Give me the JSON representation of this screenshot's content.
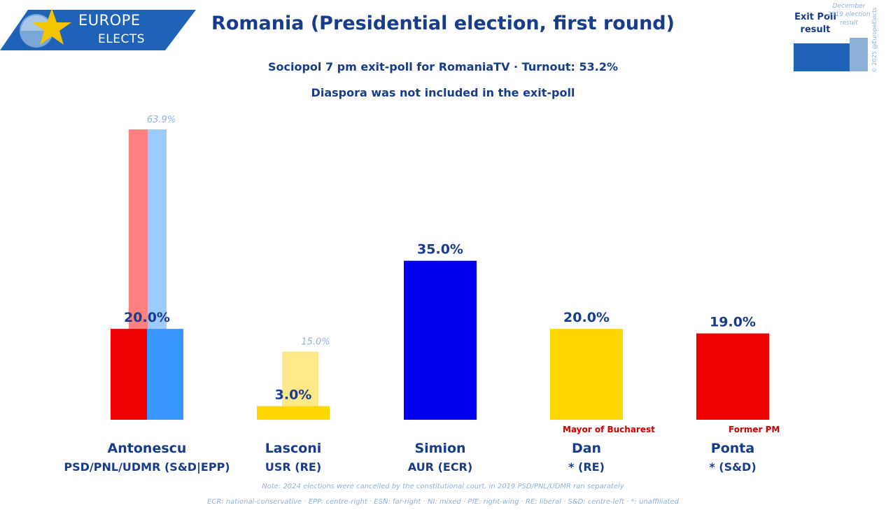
{
  "logo": {
    "line1": "EUROPE",
    "line2": "ELECTS"
  },
  "header": {
    "title": "Romania (Presidential election, first round)",
    "subtitle1": "Sociopol 7 pm exit-poll for RomaniaTV · Turnout: 53.2%",
    "subtitle2": "Diaspora was not included in the exit-poll"
  },
  "legend": {
    "current": "Exit Poll result",
    "previous": "December 2019 election result",
    "copyright": "© 2025 @EuropeElects"
  },
  "colors": {
    "brand": "#163c8a",
    "logo_blue": "#1e63b8",
    "previous_label": "#8db0d8",
    "note_red": "#cc0000"
  },
  "chart_data": {
    "type": "bar",
    "ylim": [
      0,
      70
    ],
    "categories": [
      "Antonescu",
      "Lasconi",
      "Simion",
      "Dan",
      "Ponta"
    ],
    "candidates": [
      {
        "name": "Antonescu",
        "party": "PSD/PNL/UDMR (S&D|EPP)",
        "note": "",
        "value": 20.0,
        "label": "20.0%",
        "colors": [
          "#ee0000",
          "#3b96ff"
        ],
        "previous": [
          {
            "value": 63.9,
            "label": "",
            "color": "#ff8080"
          },
          {
            "value": 63.9,
            "label": "63.9%",
            "color": "#9ecbff"
          }
        ]
      },
      {
        "name": "Lasconi",
        "party": "USR (RE)",
        "note": "",
        "value": 3.0,
        "label": "3.0%",
        "colors": [
          "#ffd700"
        ],
        "previous": [
          {
            "value": 15.0,
            "label": "15.0%",
            "color": "#ffe88a"
          }
        ]
      },
      {
        "name": "Simion",
        "party": "AUR (ECR)",
        "note": "",
        "value": 35.0,
        "label": "35.0%",
        "colors": [
          "#0000ee"
        ],
        "previous": []
      },
      {
        "name": "Dan",
        "party": "* (RE)",
        "note": "Mayor of Bucharest",
        "value": 20.0,
        "label": "20.0%",
        "colors": [
          "#ffd700"
        ],
        "previous": []
      },
      {
        "name": "Ponta",
        "party": "* (S&D)",
        "note": "Former PM",
        "value": 19.0,
        "label": "19.0%",
        "colors": [
          "#ee0000"
        ],
        "previous": []
      }
    ]
  },
  "footer": {
    "line1": "Note: 2024 elections were cancelled by the constitutional court, in 2019 PSD/PNL/UDMR ran separately",
    "line2": "ECR: national-conservative · EPP: centre-right · ESN: far-right · NI: mixed · PfE: right-wing · RE: liberal · S&D: centre-left · *: unaffiliated"
  }
}
